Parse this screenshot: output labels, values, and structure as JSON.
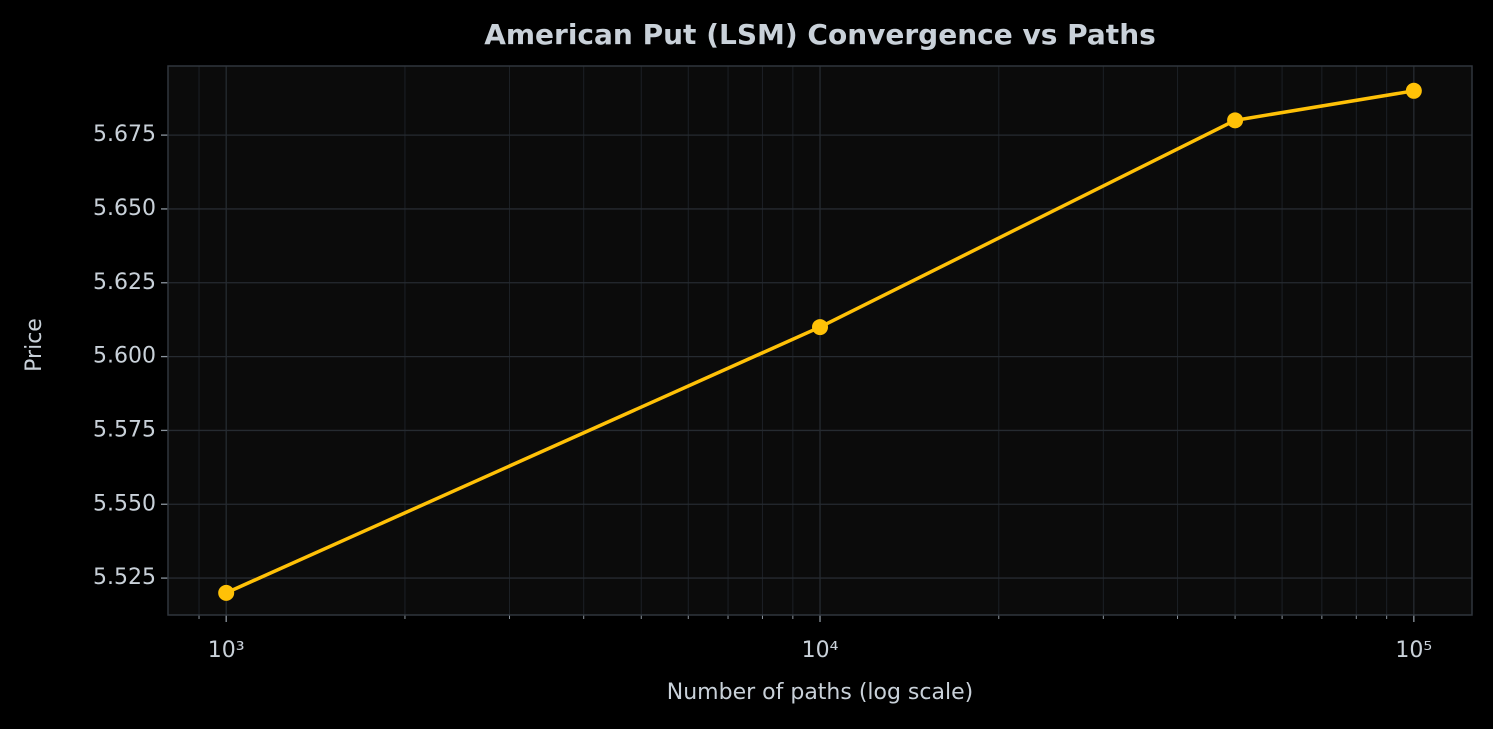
{
  "chart_data": {
    "type": "line",
    "title": "American Put (LSM) Convergence vs Paths",
    "xlabel": "Number of paths (log scale)",
    "ylabel": "Price",
    "x": [
      1000,
      10000,
      50000,
      100000
    ],
    "values": [
      5.52,
      5.61,
      5.68,
      5.69
    ],
    "color": "#ffc107",
    "marker": true,
    "xscale": "log",
    "xlim": [
      798,
      125300
    ],
    "xticks": [
      {
        "value": 1000,
        "label": "10³"
      },
      {
        "value": 10000,
        "label": "10⁴"
      },
      {
        "value": 100000,
        "label": "10⁵"
      }
    ],
    "xminorticks": [
      900,
      2000,
      3000,
      4000,
      5000,
      6000,
      7000,
      8000,
      9000,
      20000,
      30000,
      40000,
      50000,
      60000,
      70000,
      80000,
      90000
    ],
    "ylim": [
      5.5125,
      5.6984
    ],
    "yticks": [
      5.525,
      {
        "value": 5.55,
        "label": "5.550"
      },
      5.575,
      {
        "value": 5.6,
        "label": "5.600"
      },
      5.625,
      {
        "value": 5.65,
        "label": "5.650"
      },
      5.675
    ],
    "grid": true
  }
}
